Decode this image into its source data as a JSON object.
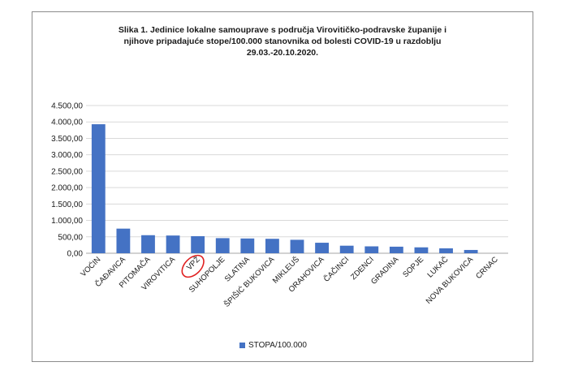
{
  "chart_data": {
    "type": "bar",
    "title_lines": [
      "Slika 1. Jedinice lokalne samouprave s područja Virovitičko-podravske županije i",
      "njihove pripadajuće stope/100.000 stanovnika od bolesti COVID-19 u razdoblju",
      "29.03.-20.10.2020."
    ],
    "categories": [
      "VOĆIN",
      "ČAĐAVICA",
      "PITOMAČA",
      "VIROVITICA",
      "VPŽ",
      "SUHOPOLJE",
      "SLATINA",
      "ŠPIŠIĆ BUKOVICA",
      "MIKLEUŠ",
      "ORAHOVICA",
      "ČAČINCI",
      "ZDENCI",
      "GRADINA",
      "SOPJE",
      "LUKAČ",
      "NOVA BUKOVICA",
      "CRNAC"
    ],
    "series": [
      {
        "name": "STOPA/100.000",
        "values": [
          3930,
          750,
          550,
          540,
          520,
          460,
          450,
          440,
          410,
          320,
          230,
          210,
          200,
          180,
          150,
          100,
          0
        ]
      }
    ],
    "ylim": [
      0,
      4500
    ],
    "yticks": [
      "0,00",
      "500,00",
      "1.000,00",
      "1.500,00",
      "2.000,00",
      "2.500,00",
      "3.000,00",
      "3.500,00",
      "4.000,00",
      "4.500,00"
    ],
    "grid": true,
    "legend_position": "bottom",
    "highlighted_category": "VPŽ",
    "colors": {
      "bar": "#4472c4",
      "grid": "#d9d9d9",
      "highlight": "#e02020"
    }
  }
}
